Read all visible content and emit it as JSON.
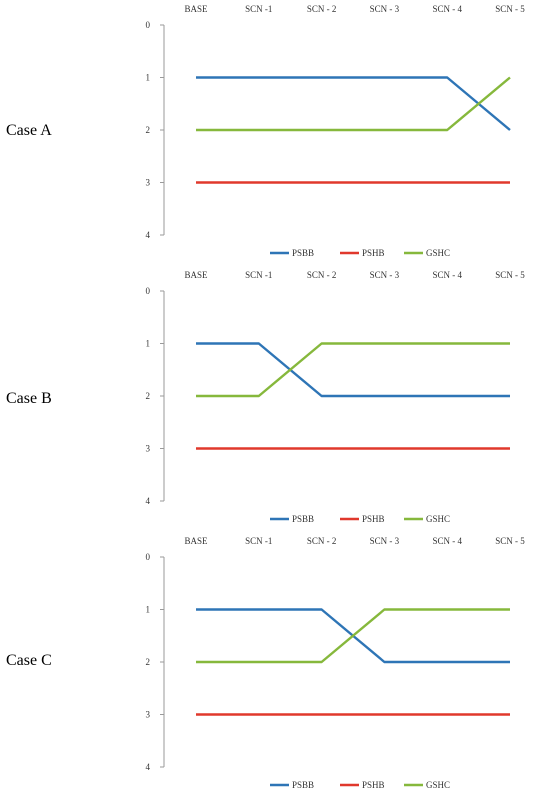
{
  "chart_data": [
    {
      "type": "line",
      "case_label": "Case A",
      "categories": [
        "BASE",
        "SCN -1",
        "SCN - 2",
        "SCN - 3",
        "SCN - 4",
        "SCN - 5"
      ],
      "yticks": [
        "0",
        "1",
        "2",
        "3",
        "4"
      ],
      "ylim": [
        0,
        4
      ],
      "y_inverted": true,
      "legend_position": "bottom",
      "series": [
        {
          "name": "PSBB",
          "color": "#2e75b6",
          "values": [
            1,
            1,
            1,
            1,
            1,
            2
          ]
        },
        {
          "name": "PSHB",
          "color": "#e0382c",
          "values": [
            3,
            3,
            3,
            3,
            3,
            3
          ]
        },
        {
          "name": "GSHC",
          "color": "#86b83c",
          "values": [
            2,
            2,
            2,
            2,
            2,
            1
          ]
        }
      ]
    },
    {
      "type": "line",
      "case_label": "Case B",
      "categories": [
        "BASE",
        "SCN -1",
        "SCN - 2",
        "SCN - 3",
        "SCN - 4",
        "SCN - 5"
      ],
      "yticks": [
        "0",
        "1",
        "2",
        "3",
        "4"
      ],
      "ylim": [
        0,
        4
      ],
      "y_inverted": true,
      "legend_position": "bottom",
      "series": [
        {
          "name": "PSBB",
          "color": "#2e75b6",
          "values": [
            1,
            1,
            2,
            2,
            2,
            2
          ]
        },
        {
          "name": "PSHB",
          "color": "#e0382c",
          "values": [
            3,
            3,
            3,
            3,
            3,
            3
          ]
        },
        {
          "name": "GSHC",
          "color": "#86b83c",
          "values": [
            2,
            2,
            1,
            1,
            1,
            1
          ]
        }
      ]
    },
    {
      "type": "line",
      "case_label": "Case C",
      "categories": [
        "BASE",
        "SCN -1",
        "SCN - 2",
        "SCN - 3",
        "SCN - 4",
        "SCN - 5"
      ],
      "yticks": [
        "0",
        "1",
        "2",
        "3",
        "4"
      ],
      "ylim": [
        0,
        4
      ],
      "y_inverted": true,
      "legend_position": "bottom",
      "series": [
        {
          "name": "PSBB",
          "color": "#2e75b6",
          "values": [
            1,
            1,
            1,
            2,
            2,
            2
          ]
        },
        {
          "name": "PSHB",
          "color": "#e0382c",
          "values": [
            3,
            3,
            3,
            3,
            3,
            3
          ]
        },
        {
          "name": "GSHC",
          "color": "#86b83c",
          "values": [
            2,
            2,
            2,
            1,
            1,
            1
          ]
        }
      ]
    }
  ]
}
